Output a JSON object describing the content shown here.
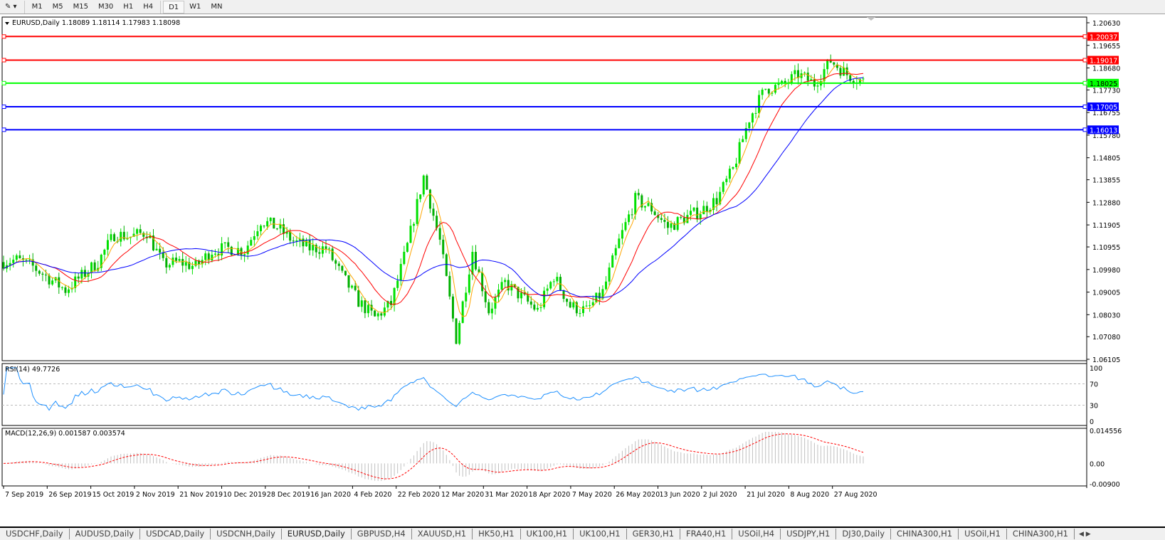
{
  "toolbar": {
    "timeframes": [
      "M1",
      "M5",
      "M15",
      "M30",
      "H1",
      "H4",
      "D1",
      "W1",
      "MN"
    ],
    "active": "D1"
  },
  "chart_header": {
    "symbol": "EURUSD,Daily",
    "ohlc": "1.18089 1.18114 1.17983 1.18098"
  },
  "colors": {
    "bull": "#00e000",
    "bear": "#00b000",
    "ma_fast": "#ffa500",
    "ma_mid": "#ff0000",
    "ma_slow": "#0000ff",
    "rsi": "#1e90ff",
    "macd_signal": "#ff0000",
    "macd_hist": "#c0c0c0"
  },
  "horizontal_lines": [
    {
      "label": "1.20037",
      "value": 1.20037,
      "color": "#ff0000"
    },
    {
      "label": "1.19017",
      "value": 1.19017,
      "color": "#ff0000"
    },
    {
      "label": "1.18025",
      "value": 1.18025,
      "color": "#00ff00"
    },
    {
      "label": "1.17005",
      "value": 1.17005,
      "color": "#0000ff"
    },
    {
      "label": "1.16013",
      "value": 1.16013,
      "color": "#0000ff"
    }
  ],
  "chart_data": [
    {
      "type": "candlestick",
      "ylim": [
        1.06105,
        1.2063
      ],
      "yticks": [
        "1.20630",
        "1.19655",
        "1.18680",
        "1.17730",
        "1.16755",
        "1.15780",
        "1.14805",
        "1.13855",
        "1.12880",
        "1.11905",
        "1.10955",
        "1.09980",
        "1.09005",
        "1.08030",
        "1.07080",
        "1.06105"
      ],
      "xticks": [
        "7 Sep 2019",
        "26 Sep 2019",
        "15 Oct 2019",
        "2 Nov 2019",
        "21 Nov 2019",
        "10 Dec 2019",
        "28 Dec 2019",
        "16 Jan 2020",
        "4 Feb 2020",
        "22 Feb 2020",
        "12 Mar 2020",
        "31 Mar 2020",
        "18 Apr 2020",
        "7 May 2020",
        "26 May 2020",
        "13 Jun 2020",
        "2 Jul 2020",
        "21 Jul 2020",
        "8 Aug 2020",
        "27 Aug 2020"
      ],
      "weekly_closes": [
        1.103,
        1.104,
        1.101,
        1.096,
        1.091,
        1.097,
        1.103,
        1.115,
        1.114,
        1.116,
        1.102,
        1.103,
        1.101,
        1.108,
        1.109,
        1.108,
        1.121,
        1.118,
        1.112,
        1.109,
        1.109,
        1.097,
        1.086,
        1.079,
        1.085,
        1.11,
        1.14,
        1.112,
        1.07,
        1.108,
        1.082,
        1.094,
        1.088,
        1.082,
        1.097,
        1.084,
        1.082,
        1.09,
        1.112,
        1.13,
        1.126,
        1.118,
        1.122,
        1.125,
        1.13,
        1.143,
        1.165,
        1.178,
        1.179,
        1.184,
        1.18,
        1.19,
        1.184,
        1.181
      ],
      "moving_averages": [
        "fast",
        "mid",
        "slow"
      ]
    },
    {
      "type": "line",
      "title": "RSI(14) 49.7726",
      "ylim": [
        0,
        100
      ],
      "yticks": [
        "100",
        "70",
        "30",
        "0"
      ],
      "levels": [
        70,
        30
      ]
    },
    {
      "type": "bar+line",
      "title": "MACD(12,26,9) 0.001587 0.003574",
      "ylim": [
        -0.009,
        0.014556
      ],
      "yticks": [
        "0.014556",
        "0.00",
        "-0.00900"
      ]
    }
  ],
  "tabs": [
    "USDCHF,Daily",
    "AUDUSD,Daily",
    "USDCAD,Daily",
    "USDCNH,Daily",
    "EURUSD,Daily",
    "GBPUSD,H4",
    "XAUUSD,H1",
    "HK50,H1",
    "UK100,H1",
    "UK100,H1",
    "GER30,H1",
    "FRA40,H1",
    "USOil,H4",
    "USDJPY,H1",
    "DJ30,Daily",
    "CHINA300,H1",
    "USOil,H1",
    "CHINA300,H1"
  ],
  "active_tab": "EURUSD,Daily"
}
